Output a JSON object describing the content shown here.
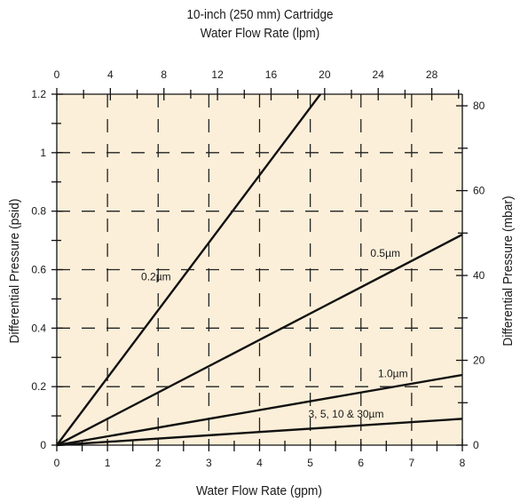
{
  "chart_data": {
    "type": "line",
    "title": "10-inch (250 mm) Cartridge",
    "subtitle": "Water Flow Rate (lpm)",
    "xlabel": "Water Flow Rate (gpm)",
    "ylabel": "Differential Pressure (psid)",
    "ylabel_right": "Differential Pressure (mbar)",
    "xlim": [
      0,
      8
    ],
    "ylim": [
      0,
      1.2
    ],
    "x_ticks": [
      "0",
      "1",
      "2",
      "3",
      "4",
      "5",
      "6",
      "7",
      "8"
    ],
    "y_ticks": [
      "0",
      "0.2",
      "0.4",
      "0.6",
      "0.8",
      "1",
      "1.2"
    ],
    "x_top_ticks": [
      "0",
      "4",
      "8",
      "12",
      "16",
      "20",
      "24",
      "28"
    ],
    "x_top_lim": [
      0,
      30.28
    ],
    "y_right_ticks": [
      "0",
      "20",
      "40",
      "60",
      "80"
    ],
    "y_right_lim": [
      0,
      82.74
    ],
    "grid": true,
    "series": [
      {
        "name": "0.2µm",
        "x": [
          0,
          5.2
        ],
        "y": [
          0,
          1.2
        ]
      },
      {
        "name": "0.5µm",
        "x": [
          0,
          8
        ],
        "y": [
          0,
          0.72
        ]
      },
      {
        "name": "1.0µm",
        "x": [
          0,
          8
        ],
        "y": [
          0,
          0.24
        ]
      },
      {
        "name": "3, 5, 10 & 30µm",
        "x": [
          0,
          8
        ],
        "y": [
          0,
          0.09
        ]
      }
    ]
  },
  "colors": {
    "plot_background": "#fcefd9",
    "line": "#111111",
    "grid": "#222222"
  }
}
